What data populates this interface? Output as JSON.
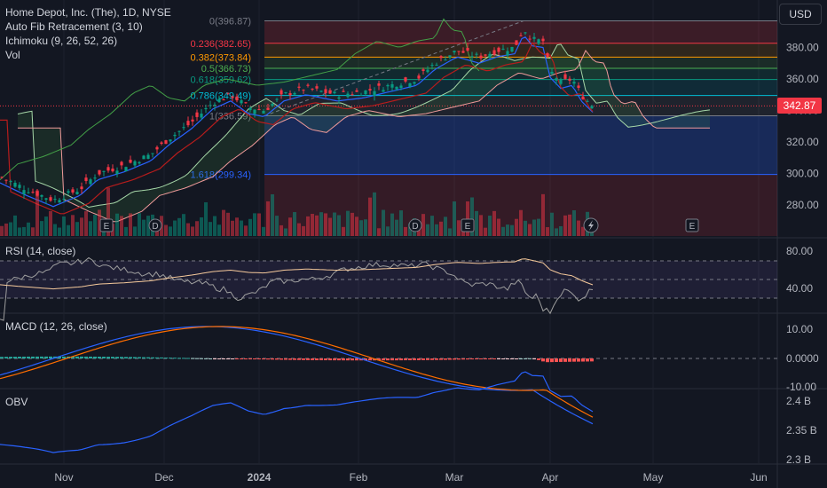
{
  "symbol_title": "Home Depot, Inc. (The), 1D, NYSE",
  "indicators": [
    "Auto Fib Retracement (3, 10)",
    "Ichimoku (9, 26, 52, 26)",
    "Vol"
  ],
  "currency": "USD",
  "last_price": "342.87",
  "price_axis": [
    "380.00",
    "360.00",
    "340.00",
    "320.00",
    "300.00",
    "280.00"
  ],
  "fib_levels": [
    {
      "label": "0(396.87)",
      "price": 396.87,
      "color": "#787b86"
    },
    {
      "label": "0.236(382.65)",
      "price": 382.65,
      "color": "#f23645"
    },
    {
      "label": "0.382(373.84)",
      "price": 373.84,
      "color": "#ff9800"
    },
    {
      "label": "0.5(366.73)",
      "price": 366.73,
      "color": "#4caf50"
    },
    {
      "label": "0.618(359.62)",
      "price": 359.62,
      "color": "#089981"
    },
    {
      "label": "0.786(349.49)",
      "price": 349.49,
      "color": "#00bcd4"
    },
    {
      "label": "1(336.59)",
      "price": 336.59,
      "color": "#787b86"
    },
    {
      "label": "1.618(299.34)",
      "price": 299.34,
      "color": "#2962ff"
    }
  ],
  "rsi": {
    "title": "RSI (14, close)",
    "axis": [
      "80.00",
      "40.00"
    ]
  },
  "macd": {
    "title": "MACD (12, 26, close)",
    "axis": [
      "10.00",
      "0.0000",
      "-10.00"
    ]
  },
  "obv": {
    "title": "OBV",
    "axis": [
      "2.4 B",
      "2.35 B",
      "2.3 B"
    ]
  },
  "time_axis": [
    "Nov",
    "Dec",
    "2024",
    "Feb",
    "Mar",
    "Apr",
    "May",
    "Jun"
  ],
  "event_markers": [
    "E",
    "D",
    "D",
    "E",
    "D",
    "E"
  ],
  "colors": {
    "up": "#089981",
    "down": "#f23645",
    "background": "#131722"
  }
}
